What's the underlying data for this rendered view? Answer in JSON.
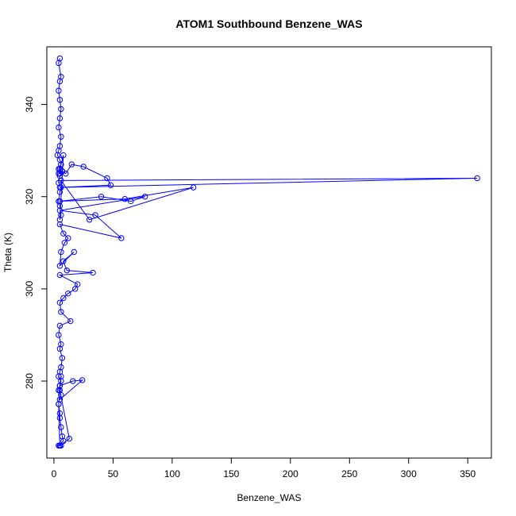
{
  "chart_data": {
    "type": "line",
    "title": "ATOM1 Southbound Benzene_WAS",
    "xlabel": "Benzene_WAS",
    "ylabel": "Theta (K)",
    "xlim": [
      -6,
      370
    ],
    "ylim": [
      263.3,
      352.5
    ],
    "x_ticks": [
      0,
      50,
      100,
      150,
      200,
      250,
      300,
      350
    ],
    "y_ticks": [
      280,
      300,
      320,
      340
    ],
    "grid": false,
    "legend": "none",
    "series_color": "#0000ff",
    "marker": "open-circle",
    "series": [
      {
        "x": [
          5,
          4,
          6,
          5,
          4,
          5,
          6,
          5,
          4,
          6,
          5,
          4,
          3,
          5,
          6,
          4,
          5,
          7,
          5,
          4,
          6,
          5,
          4,
          5,
          6,
          5,
          8,
          6,
          5,
          4,
          7,
          10,
          15,
          25,
          45,
          48,
          5,
          358,
          6,
          30,
          118,
          60,
          5,
          40,
          65,
          77,
          5,
          35,
          57,
          5,
          8,
          12,
          9,
          6,
          5,
          17,
          8,
          11,
          33,
          5,
          20,
          18,
          12,
          8,
          5,
          6,
          14,
          5,
          4,
          6,
          5,
          7,
          6,
          5,
          4,
          6,
          5,
          4,
          6,
          5,
          24,
          16,
          5,
          6,
          4,
          5,
          5,
          6,
          7,
          8,
          4,
          6,
          5,
          5,
          13,
          5,
          4,
          5
        ],
        "y": [
          350,
          349,
          346,
          345,
          343,
          341,
          339,
          337,
          335,
          333,
          331,
          330,
          329,
          328,
          327,
          326,
          325,
          325.5,
          324.5,
          323,
          322,
          321,
          319,
          318,
          316,
          315,
          329,
          327,
          326,
          325,
          325.5,
          325,
          327,
          326.5,
          324,
          322.5,
          322,
          324,
          323.5,
          315,
          322,
          319.5,
          319,
          320,
          319,
          320,
          317,
          316,
          311,
          314,
          312,
          311,
          310,
          308,
          305,
          308,
          306,
          304,
          303.5,
          303,
          301,
          300,
          299,
          298,
          297,
          295,
          293,
          292,
          290,
          288,
          287,
          285,
          283,
          282,
          281,
          280,
          279,
          278,
          277,
          276,
          280.2,
          280,
          279,
          281,
          275,
          273,
          272,
          270,
          268,
          267,
          266,
          266,
          266,
          266,
          267.5,
          278,
          275,
          266
        ]
      }
    ]
  }
}
